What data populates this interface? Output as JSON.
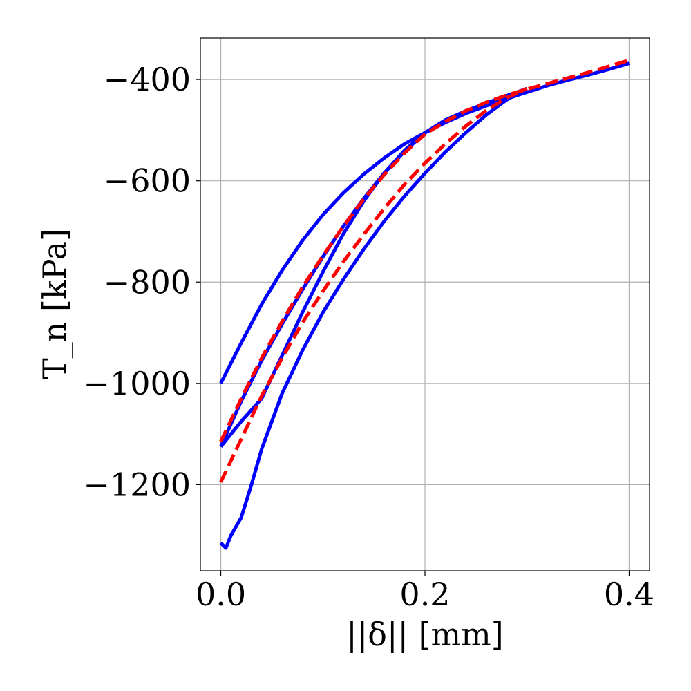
{
  "chart_data": {
    "type": "line",
    "title": "",
    "xlabel": "||δ|| [mm]",
    "ylabel": "T_n [kPa]",
    "xlim": [
      -0.02,
      0.42
    ],
    "ylim": [
      -1370,
      -318
    ],
    "grid": true,
    "legend": "none",
    "x_ticks": [
      0.0,
      0.2,
      0.4
    ],
    "x_tick_labels": [
      "0.0",
      "0.2",
      "0.4"
    ],
    "y_ticks": [
      -400,
      -600,
      -800,
      -1000,
      -1200
    ],
    "y_tick_labels": [
      "−400",
      "−600",
      "−800",
      "−1000",
      "−1200"
    ],
    "series": [
      {
        "color": "#0000ff",
        "style": "solid",
        "x": [
          0.0,
          0.02,
          0.04,
          0.06,
          0.08,
          0.1,
          0.12,
          0.14,
          0.16,
          0.18,
          0.2,
          0.22,
          0.24,
          0.26,
          0.28,
          0.3,
          0.32,
          0.34,
          0.36,
          0.38,
          0.4
        ],
        "y": [
          -1000,
          -920,
          -844,
          -777,
          -718,
          -667,
          -624,
          -587,
          -555,
          -527,
          -505,
          -485,
          -467,
          -452,
          -438,
          -425,
          -412,
          -401,
          -391,
          -380,
          -368
        ]
      },
      {
        "color": "#0000ff",
        "style": "solid",
        "x": [
          0.2,
          0.18,
          0.16,
          0.14,
          0.12,
          0.1,
          0.08,
          0.06,
          0.04,
          0.02,
          0.0
        ],
        "y": [
          -505,
          -540,
          -585,
          -640,
          -705,
          -780,
          -860,
          -945,
          -1030,
          -1075,
          -1125
        ]
      },
      {
        "color": "#0000ff",
        "style": "solid",
        "x": [
          0.0,
          0.02,
          0.04,
          0.06,
          0.08,
          0.1,
          0.12,
          0.14,
          0.16,
          0.18,
          0.2,
          0.22,
          0.24,
          0.26,
          0.28,
          0.3
        ],
        "y": [
          -1125,
          -1035,
          -955,
          -883,
          -815,
          -750,
          -690,
          -635,
          -585,
          -542,
          -505,
          -480,
          -462,
          -447,
          -432,
          -418
        ]
      },
      {
        "color": "#0000ff",
        "style": "solid",
        "x": [
          0.3,
          0.28,
          0.26,
          0.24,
          0.22,
          0.2,
          0.18,
          0.16,
          0.14,
          0.12,
          0.1,
          0.08,
          0.06,
          0.04,
          0.03,
          0.02,
          0.01,
          0.005,
          0.0
        ],
        "y": [
          -418,
          -440,
          -470,
          -505,
          -543,
          -585,
          -630,
          -680,
          -735,
          -795,
          -860,
          -935,
          -1020,
          -1130,
          -1200,
          -1265,
          -1300,
          -1325,
          -1315
        ]
      },
      {
        "color": "#ff0000",
        "style": "dashed",
        "x": [
          0.0,
          0.02,
          0.04,
          0.06,
          0.08,
          0.1,
          0.12,
          0.14,
          0.16,
          0.18,
          0.2,
          0.22,
          0.24,
          0.26,
          0.28,
          0.3,
          0.32,
          0.34,
          0.36,
          0.38,
          0.4
        ],
        "y": [
          -1115,
          -1030,
          -950,
          -878,
          -810,
          -748,
          -690,
          -636,
          -588,
          -545,
          -508,
          -483,
          -462,
          -445,
          -431,
          -419,
          -408,
          -397,
          -386,
          -374,
          -362
        ]
      },
      {
        "color": "#ff0000",
        "style": "dashed",
        "x": [
          0.0,
          0.02,
          0.04,
          0.06,
          0.08,
          0.1,
          0.12,
          0.14,
          0.16,
          0.18,
          0.2,
          0.22,
          0.24,
          0.26,
          0.28,
          0.3
        ],
        "y": [
          -1195,
          -1110,
          -1025,
          -950,
          -880,
          -818,
          -760,
          -706,
          -655,
          -607,
          -565,
          -527,
          -492,
          -461,
          -436,
          -418
        ]
      }
    ]
  }
}
